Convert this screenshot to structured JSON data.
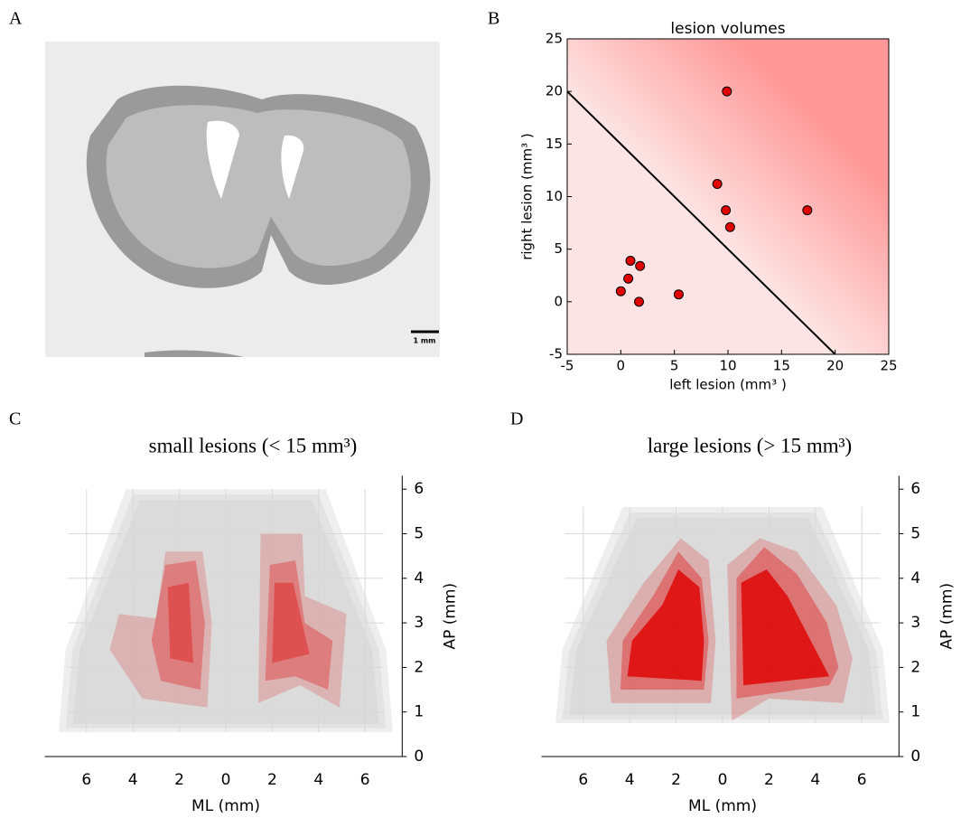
{
  "panel_labels": [
    "A",
    "B",
    "C",
    "D"
  ],
  "scale_bar": "1 mm",
  "chart_data": [
    {
      "type": "scatter",
      "title": "lesion volumes",
      "xlabel": "left lesion (mm³ )",
      "ylabel": "right lesion (mm³ )",
      "x": [
        0,
        0.7,
        0.9,
        1.8,
        1.7,
        5.4,
        9.0,
        9.8,
        10.2,
        9.9,
        17.4
      ],
      "y": [
        1,
        2.2,
        3.9,
        3.4,
        0,
        0.7,
        11.2,
        8.7,
        7.1,
        20,
        8.7
      ],
      "color": "#e00000",
      "boundary": {
        "x": [
          -5,
          20
        ],
        "y": [
          20,
          -5
        ]
      },
      "background_colors": [
        "#fde4e4",
        "#ff9999"
      ],
      "xlim": [
        -5,
        25
      ],
      "ylim": [
        -5,
        25
      ],
      "xticks": [
        -5,
        0,
        5,
        10,
        15,
        20,
        25
      ],
      "yticks": [
        -5,
        0,
        5,
        10,
        15,
        20,
        25
      ]
    },
    {
      "type": "map",
      "title": "small lesions (< 15 mm³)",
      "xlabel": "ML (mm)",
      "ylabel": "AP (mm)",
      "xlim": [
        -7.8,
        7.6
      ],
      "ylim": [
        0,
        6.3
      ],
      "xticks": [
        {
          "value": -6,
          "label": "6"
        },
        {
          "value": -4,
          "label": "4"
        },
        {
          "value": -2,
          "label": "2"
        },
        0,
        2,
        4,
        6
      ],
      "yticks": [
        0,
        1,
        2,
        3,
        4,
        5,
        6
      ],
      "grid": true
    },
    {
      "type": "map",
      "title": "large lesions (> 15 mm³)",
      "xlabel": "ML (mm)",
      "ylabel": "AP (mm)",
      "xlim": [
        -7.8,
        7.6
      ],
      "ylim": [
        0,
        6.3
      ],
      "xticks": [
        {
          "value": -6,
          "label": "6"
        },
        {
          "value": -4,
          "label": "4"
        },
        {
          "value": -2,
          "label": "2"
        },
        0,
        2,
        4,
        6
      ],
      "yticks": [
        0,
        1,
        2,
        3,
        4,
        5,
        6
      ],
      "grid": true
    }
  ]
}
